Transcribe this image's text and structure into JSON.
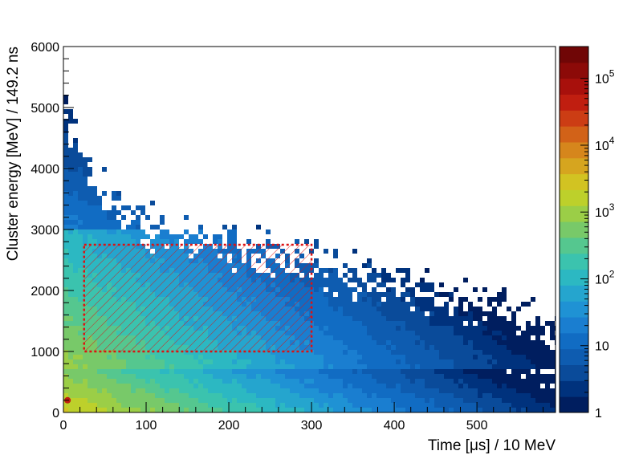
{
  "chart_data": {
    "type": "heatmap",
    "title": "",
    "xlabel": "Time [μs] / 10 MeV",
    "ylabel": "Cluster energy [MeV] / 149.2 ns",
    "xlim": [
      0,
      595
    ],
    "ylim": [
      0,
      6000
    ],
    "xticks": [
      0,
      100,
      200,
      300,
      400,
      500
    ],
    "xtick_labels": [
      "0",
      "100",
      "200",
      "300",
      "400",
      "500"
    ],
    "yticks": [
      0,
      1000,
      2000,
      3000,
      4000,
      5000,
      6000
    ],
    "ytick_labels": [
      "0",
      "1000",
      "2000",
      "3000",
      "4000",
      "5000",
      "6000"
    ],
    "grid": false,
    "z_scale": "log",
    "zlim": [
      1,
      300000
    ],
    "colorbar": {
      "ticks": [
        1,
        10,
        100,
        1000,
        10000,
        100000
      ],
      "labels": [
        {
          "base": "1",
          "exp": ""
        },
        {
          "base": "10",
          "exp": ""
        },
        {
          "base": "10",
          "exp": "2"
        },
        {
          "base": "10",
          "exp": "3"
        },
        {
          "base": "10",
          "exp": "4"
        },
        {
          "base": "10",
          "exp": "5"
        }
      ],
      "palette": [
        "#001e5f",
        "#00327d",
        "#0a4b9a",
        "#0e5cb0",
        "#116cc3",
        "#1a7ed0",
        "#1f92d4",
        "#25a5ce",
        "#2cb8c2",
        "#3bc3ae",
        "#55c78f",
        "#78c969",
        "#9bce47",
        "#bdd02b",
        "#d2c322",
        "#d6a51f",
        "#d6861c",
        "#d26218",
        "#cc3d14",
        "#c01e10",
        "#a8100c",
        "#8c0a08",
        "#700606"
      ]
    },
    "annotations": [
      {
        "type": "hatched-rectangle",
        "x_range": [
          25,
          300
        ],
        "y_range": [
          1000,
          2750
        ],
        "color": "#dd1111"
      }
    ],
    "hotspot": {
      "x": 5,
      "y": 200,
      "color": "#c01e10"
    }
  }
}
